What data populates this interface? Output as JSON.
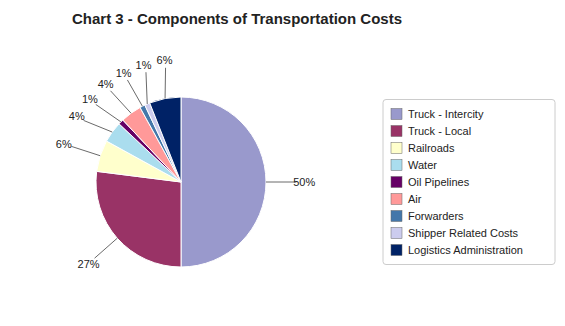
{
  "chart_data": {
    "type": "pie",
    "title": "Chart 3 - Components of Transportation Costs",
    "categories": [
      "Truck - Intercity",
      "Truck - Local",
      "Railroads",
      "Water",
      "Oil Pipelines",
      "Air",
      "Forwarders",
      "Shipper Related Costs",
      "Logistics Administration"
    ],
    "values": [
      50,
      27,
      6,
      4,
      1,
      4,
      1,
      1,
      6
    ],
    "value_labels": [
      "50%",
      "27%",
      "6%",
      "4%",
      "1%",
      "4%",
      "1%",
      "1%",
      "6%"
    ],
    "colors": [
      "#9999CC",
      "#993366",
      "#FFFFCC",
      "#AADDEE",
      "#660066",
      "#FF9999",
      "#4477AA",
      "#CCCCEE",
      "#002266"
    ],
    "data_labels": true,
    "legend": "right"
  }
}
